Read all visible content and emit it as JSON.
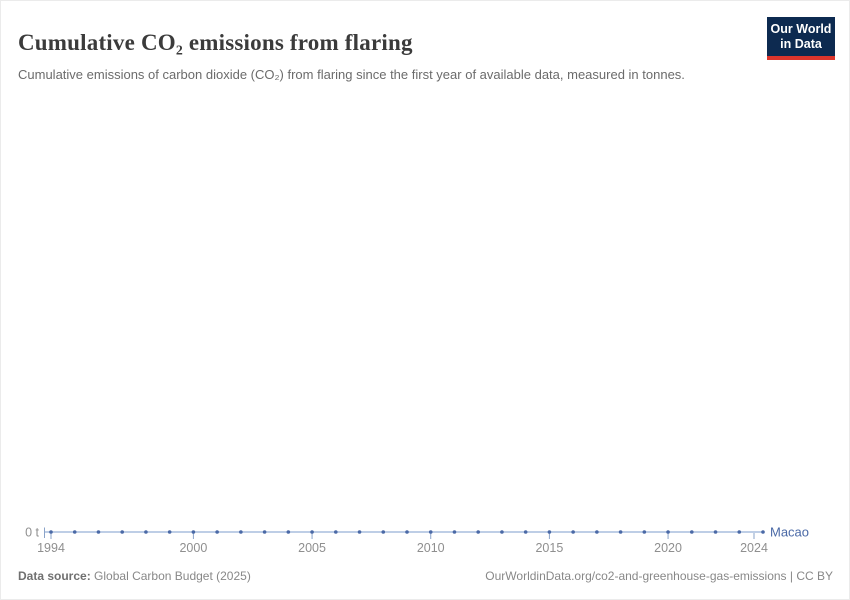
{
  "header": {
    "title": "Cumulative CO₂ emissions from flaring",
    "subtitle": "Cumulative emissions of carbon dioxide (CO₂) from flaring since the first year of available data, measured in tonnes."
  },
  "logo": {
    "line1": "Our World",
    "line2": "in Data",
    "bg_color": "#0d2a50",
    "strip_color": "#dc352c"
  },
  "chart_data": {
    "type": "line",
    "title": "Cumulative CO₂ emissions from flaring",
    "subtitle": "Cumulative emissions of carbon dioxide (CO₂) from flaring since the first year of available data, measured in tonnes.",
    "entity": "Macao",
    "unit": "t",
    "x": [
      1994,
      1995,
      1996,
      1997,
      1998,
      1999,
      2000,
      2001,
      2002,
      2003,
      2004,
      2005,
      2006,
      2007,
      2008,
      2009,
      2010,
      2011,
      2012,
      2013,
      2014,
      2015,
      2016,
      2017,
      2018,
      2019,
      2020,
      2021,
      2022,
      2023,
      2024
    ],
    "series": [
      {
        "name": "Macao",
        "values": [
          0,
          0,
          0,
          0,
          0,
          0,
          0,
          0,
          0,
          0,
          0,
          0,
          0,
          0,
          0,
          0,
          0,
          0,
          0,
          0,
          0,
          0,
          0,
          0,
          0,
          0,
          0,
          0,
          0,
          0,
          0
        ]
      }
    ],
    "x_ticks": [
      1994,
      2000,
      2005,
      2010,
      2015,
      2020,
      2024
    ],
    "y_tick_label": "0 t",
    "ylim": [
      0,
      0
    ],
    "grid": false,
    "legend_position": "end-of-line",
    "colors": {
      "line": "#a9bedd",
      "marker": "#4a69a6",
      "tick": "#8aa3c9",
      "axis_text": "#8f8f8f",
      "entity_label": "#4a69a6"
    }
  },
  "footer": {
    "datasource_label": "Data source:",
    "datasource_value": "Global Carbon Budget (2025)",
    "attribution": "OurWorldinData.org/co2-and-greenhouse-gas-emissions | CC BY"
  }
}
